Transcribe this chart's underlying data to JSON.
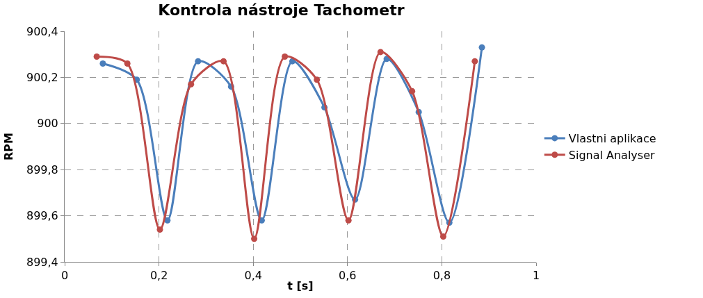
{
  "chart_data": {
    "type": "line",
    "title": "Kontrola nástroje Tachometr",
    "xlabel": "t [s]",
    "ylabel": "RPM",
    "xlim": [
      0,
      1
    ],
    "xticks": [
      0,
      {
        "value": 0.2,
        "label": "0,2"
      },
      {
        "value": 0.4,
        "label": "0,4"
      },
      {
        "value": 0.6,
        "label": "0,6"
      },
      {
        "value": 0.8,
        "label": "0,8"
      },
      1
    ],
    "ylim": [
      899.4,
      900.4
    ],
    "yticks": [
      {
        "value": 899.4,
        "label": "899,4"
      },
      {
        "value": 899.6,
        "label": "899,6"
      },
      {
        "value": 899.8,
        "label": "899,8"
      },
      900,
      {
        "value": 900.2,
        "label": "900,2"
      },
      {
        "value": 900.4,
        "label": "900,4"
      }
    ],
    "grid": true,
    "legend": "right",
    "marker": "circle",
    "series": [
      {
        "name": "Vlastni aplikace",
        "color": "#4a7ebb",
        "x": [
          0.081,
          0.153,
          0.218,
          0.283,
          0.353,
          0.418,
          0.483,
          0.551,
          0.616,
          0.683,
          0.751,
          0.816,
          0.885
        ],
        "values": [
          900.26,
          900.19,
          899.58,
          900.27,
          900.16,
          899.58,
          900.27,
          900.07,
          899.67,
          900.28,
          900.05,
          899.57,
          900.33
        ]
      },
      {
        "name": "Signal Analyser",
        "color": "#be4b48",
        "x": [
          0.068,
          0.133,
          0.202,
          0.268,
          0.337,
          0.402,
          0.467,
          0.535,
          0.602,
          0.67,
          0.737,
          0.803,
          0.87
        ],
        "values": [
          900.29,
          900.26,
          899.54,
          900.17,
          900.27,
          899.5,
          900.29,
          900.19,
          899.58,
          900.31,
          900.14,
          899.51,
          900.27
        ]
      }
    ]
  }
}
